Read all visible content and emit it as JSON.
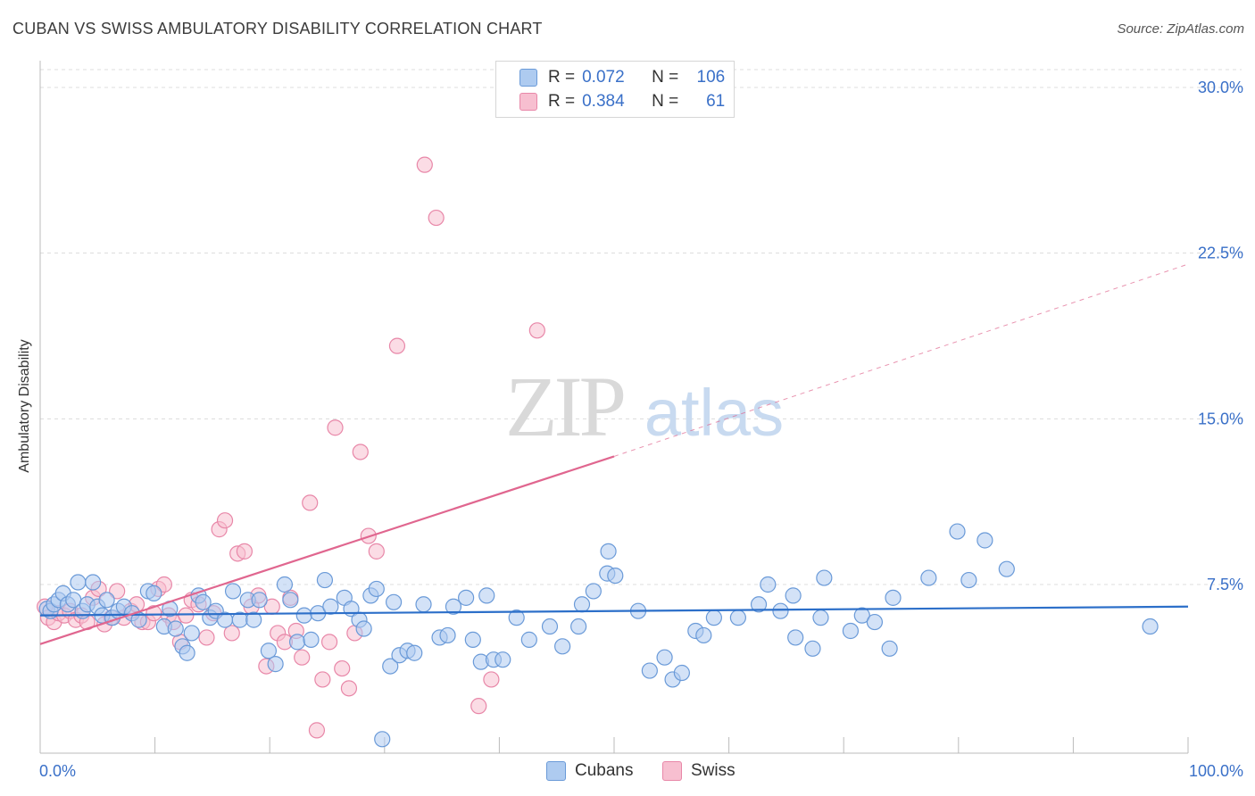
{
  "title": "CUBAN VS SWISS AMBULATORY DISABILITY CORRELATION CHART",
  "source": "Source: ZipAtlas.com",
  "watermark": {
    "zip": "ZIP",
    "atlas": "atlas"
  },
  "legend": {
    "rows": [
      {
        "r_label": "R =",
        "r_value": "0.072",
        "n_label": "N =",
        "n_value": "106"
      },
      {
        "r_label": "R =",
        "r_value": "0.384",
        "n_label": "N =",
        "n_value": "61"
      }
    ]
  },
  "bottom_legend": [
    "Cubans",
    "Swiss"
  ],
  "colors": {
    "cubans_fill": "#aecbf0",
    "cubans_stroke": "#6a9ad8",
    "cubans_line": "#2c6fc9",
    "swiss_fill": "#f7bfd0",
    "swiss_stroke": "#e887a8",
    "swiss_line": "#e0668f",
    "tick_label": "#3a70c8",
    "grid": "#dcdcdc"
  },
  "chart_data": {
    "type": "scatter",
    "ylabel": "Ambulatory Disability",
    "xlim": [
      0,
      100
    ],
    "ylim": [
      0,
      31
    ],
    "x_tick_labels": [
      {
        "value": 0,
        "label": "0.0%"
      },
      {
        "value": 100,
        "label": "100.0%"
      }
    ],
    "y_ticks": [
      {
        "value": 7.5,
        "label": "7.5%"
      },
      {
        "value": 15.0,
        "label": "15.0%"
      },
      {
        "value": 22.5,
        "label": "22.5%"
      },
      {
        "value": 30.0,
        "label": "30.0%"
      }
    ],
    "grid": "horizontal dashed",
    "legend_position": "top-center",
    "series": [
      {
        "name": "Cubans",
        "trend": {
          "x0": 0,
          "y0": 6.1,
          "x1": 100,
          "y1": 6.5
        },
        "points": [
          [
            0.6,
            6.4
          ],
          [
            0.9,
            6.3
          ],
          [
            1.2,
            6.6
          ],
          [
            1.6,
            6.8
          ],
          [
            2.0,
            7.1
          ],
          [
            2.4,
            6.6
          ],
          [
            2.9,
            6.8
          ],
          [
            3.3,
            7.6
          ],
          [
            3.7,
            6.3
          ],
          [
            4.1,
            6.6
          ],
          [
            4.6,
            7.6
          ],
          [
            5.0,
            6.5
          ],
          [
            5.4,
            6.1
          ],
          [
            5.8,
            6.8
          ],
          [
            6.3,
            6.0
          ],
          [
            6.8,
            6.3
          ],
          [
            7.3,
            6.5
          ],
          [
            8.0,
            6.2
          ],
          [
            8.6,
            5.9
          ],
          [
            9.4,
            7.2
          ],
          [
            9.9,
            7.1
          ],
          [
            10.8,
            5.6
          ],
          [
            11.3,
            6.4
          ],
          [
            11.8,
            5.5
          ],
          [
            12.4,
            4.7
          ],
          [
            12.8,
            4.4
          ],
          [
            13.2,
            5.3
          ],
          [
            13.8,
            7.0
          ],
          [
            14.2,
            6.7
          ],
          [
            14.8,
            6.0
          ],
          [
            15.3,
            6.3
          ],
          [
            16.1,
            5.9
          ],
          [
            16.8,
            7.2
          ],
          [
            17.4,
            5.9
          ],
          [
            18.1,
            6.8
          ],
          [
            18.6,
            5.9
          ],
          [
            19.1,
            6.8
          ],
          [
            19.9,
            4.5
          ],
          [
            20.5,
            3.9
          ],
          [
            21.3,
            7.5
          ],
          [
            21.8,
            6.8
          ],
          [
            22.4,
            4.9
          ],
          [
            23.0,
            6.1
          ],
          [
            23.6,
            5.0
          ],
          [
            24.2,
            6.2
          ],
          [
            24.8,
            7.7
          ],
          [
            25.3,
            6.5
          ],
          [
            26.5,
            6.9
          ],
          [
            27.1,
            6.4
          ],
          [
            27.8,
            5.9
          ],
          [
            28.2,
            5.5
          ],
          [
            28.8,
            7.0
          ],
          [
            29.3,
            7.3
          ],
          [
            29.8,
            0.5
          ],
          [
            30.5,
            3.8
          ],
          [
            30.8,
            6.7
          ],
          [
            31.3,
            4.3
          ],
          [
            32.0,
            4.5
          ],
          [
            32.6,
            4.4
          ],
          [
            33.4,
            6.6
          ],
          [
            34.8,
            5.1
          ],
          [
            35.5,
            5.2
          ],
          [
            36.0,
            6.5
          ],
          [
            37.1,
            6.9
          ],
          [
            37.7,
            5.0
          ],
          [
            38.4,
            4.0
          ],
          [
            38.9,
            7.0
          ],
          [
            39.5,
            4.1
          ],
          [
            40.3,
            4.1
          ],
          [
            41.5,
            6.0
          ],
          [
            42.6,
            5.0
          ],
          [
            44.4,
            5.6
          ],
          [
            45.5,
            4.7
          ],
          [
            46.9,
            5.6
          ],
          [
            47.2,
            6.6
          ],
          [
            48.2,
            7.2
          ],
          [
            49.4,
            8.0
          ],
          [
            49.5,
            9.0
          ],
          [
            50.1,
            7.9
          ],
          [
            52.1,
            6.3
          ],
          [
            53.1,
            3.6
          ],
          [
            54.4,
            4.2
          ],
          [
            55.1,
            3.2
          ],
          [
            55.9,
            3.5
          ],
          [
            57.1,
            5.4
          ],
          [
            57.8,
            5.2
          ],
          [
            58.7,
            6.0
          ],
          [
            60.8,
            6.0
          ],
          [
            62.6,
            6.6
          ],
          [
            63.4,
            7.5
          ],
          [
            64.5,
            6.3
          ],
          [
            65.6,
            7.0
          ],
          [
            65.8,
            5.1
          ],
          [
            67.3,
            4.6
          ],
          [
            68.0,
            6.0
          ],
          [
            68.3,
            7.8
          ],
          [
            70.6,
            5.4
          ],
          [
            71.6,
            6.1
          ],
          [
            72.7,
            5.8
          ],
          [
            74.0,
            4.6
          ],
          [
            74.3,
            6.9
          ],
          [
            77.4,
            7.8
          ],
          [
            79.9,
            9.9
          ],
          [
            80.9,
            7.7
          ],
          [
            82.3,
            9.5
          ],
          [
            84.2,
            8.2
          ],
          [
            96.7,
            5.6
          ]
        ]
      },
      {
        "name": "Swiss",
        "trend": {
          "x0": 0,
          "y0": 4.8,
          "x1": 50,
          "y1": 13.3,
          "dashed_x1": 100,
          "dashed_y1": 22.0
        },
        "points": [
          [
            0.4,
            6.5
          ],
          [
            0.7,
            6.0
          ],
          [
            1.2,
            5.8
          ],
          [
            1.6,
            6.2
          ],
          [
            2.1,
            6.1
          ],
          [
            2.6,
            6.3
          ],
          [
            3.1,
            5.9
          ],
          [
            3.6,
            6.1
          ],
          [
            4.1,
            5.8
          ],
          [
            4.6,
            6.9
          ],
          [
            5.1,
            7.3
          ],
          [
            5.6,
            5.7
          ],
          [
            6.2,
            6.0
          ],
          [
            6.7,
            7.2
          ],
          [
            7.3,
            6.0
          ],
          [
            7.9,
            6.3
          ],
          [
            8.4,
            6.6
          ],
          [
            8.9,
            5.8
          ],
          [
            9.4,
            5.8
          ],
          [
            9.9,
            6.2
          ],
          [
            10.3,
            7.3
          ],
          [
            10.8,
            7.5
          ],
          [
            11.2,
            6.1
          ],
          [
            11.6,
            5.8
          ],
          [
            12.2,
            4.9
          ],
          [
            12.7,
            6.1
          ],
          [
            13.2,
            6.8
          ],
          [
            13.8,
            6.6
          ],
          [
            14.5,
            5.1
          ],
          [
            15.1,
            6.2
          ],
          [
            15.6,
            10.0
          ],
          [
            16.1,
            10.4
          ],
          [
            16.7,
            5.3
          ],
          [
            17.2,
            8.9
          ],
          [
            17.8,
            9.0
          ],
          [
            18.4,
            6.5
          ],
          [
            19.0,
            7.0
          ],
          [
            19.7,
            3.8
          ],
          [
            20.2,
            6.5
          ],
          [
            20.7,
            5.3
          ],
          [
            21.3,
            4.9
          ],
          [
            21.8,
            6.9
          ],
          [
            22.3,
            5.4
          ],
          [
            22.8,
            4.2
          ],
          [
            23.5,
            11.2
          ],
          [
            24.1,
            0.9
          ],
          [
            24.6,
            3.2
          ],
          [
            25.2,
            4.9
          ],
          [
            25.7,
            14.6
          ],
          [
            26.3,
            3.7
          ],
          [
            26.9,
            2.8
          ],
          [
            27.4,
            5.3
          ],
          [
            27.9,
            13.5
          ],
          [
            28.6,
            9.7
          ],
          [
            29.3,
            9.0
          ],
          [
            31.1,
            18.3
          ],
          [
            33.5,
            26.5
          ],
          [
            34.5,
            24.1
          ],
          [
            38.2,
            2.0
          ],
          [
            39.3,
            3.2
          ],
          [
            43.3,
            19.0
          ]
        ]
      }
    ]
  }
}
